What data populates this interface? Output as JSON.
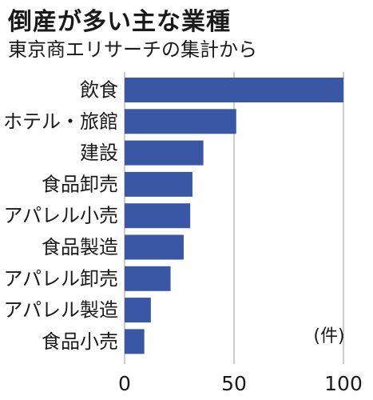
{
  "chart_data": {
    "type": "bar",
    "orientation": "horizontal",
    "title": "倒産が多い主な業種",
    "subtitle": "東京商エリサーチの集計から",
    "unit": "(件)",
    "categories": [
      "飲食",
      "ホテル・旅館",
      "建設",
      "食品卸売",
      "アパレル小売",
      "食品製造",
      "アパレル卸売",
      "アパレル製造",
      "食品小売"
    ],
    "values": [
      100,
      51,
      36,
      31,
      30,
      27,
      21,
      12,
      9
    ],
    "xlim": [
      0,
      100
    ],
    "xticks": [
      0,
      50,
      100
    ],
    "xtick_labels": [
      "0",
      "50",
      "100"
    ],
    "grid": "vertical",
    "bar_color": "#3a57a6"
  }
}
